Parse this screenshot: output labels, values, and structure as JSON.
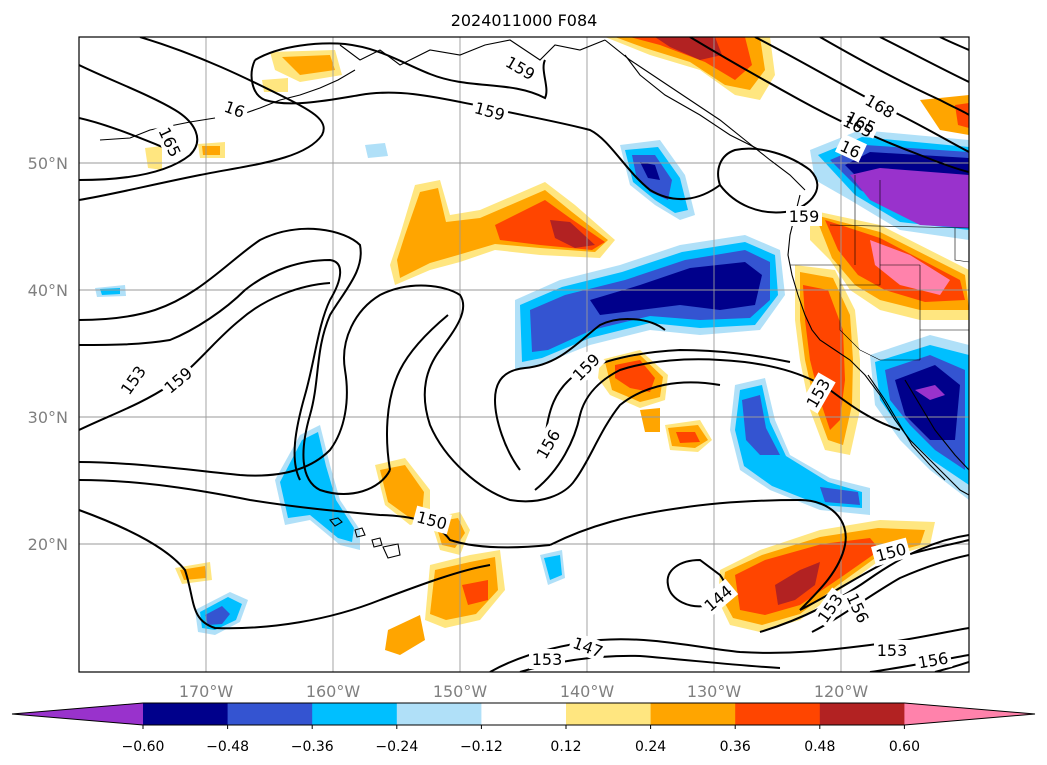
{
  "title": "2024011000 F084",
  "map": {
    "lat_labels": [
      "50°N",
      "40°N",
      "30°N",
      "20°N"
    ],
    "lon_labels": [
      "170°W",
      "160°W",
      "150°W",
      "140°W",
      "130°W",
      "120°W"
    ],
    "contour_labels": [
      "159",
      "159",
      "165",
      "16",
      "165",
      "168",
      "165",
      "16",
      "159",
      "153",
      "159",
      "159",
      "156",
      "150",
      "153",
      "150",
      "144",
      "153",
      "156",
      "147",
      "153",
      "153",
      "156"
    ]
  },
  "colorbar": {
    "ticks": [
      "−0.60",
      "−0.48",
      "−0.36",
      "−0.24",
      "−0.12",
      "0.12",
      "0.24",
      "0.36",
      "0.48",
      "0.60"
    ],
    "colors": [
      "#9932cc",
      "#00008b",
      "#3454d1",
      "#00bfff",
      "#b0e0f8",
      "#ffffff",
      "#ffe680",
      "#ffa500",
      "#ff4500",
      "#b22222",
      "#ff82ab"
    ]
  }
}
